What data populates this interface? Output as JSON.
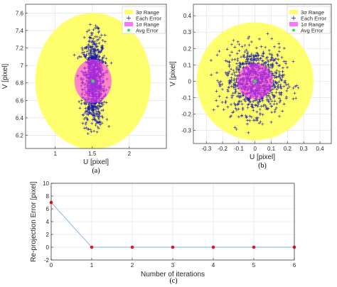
{
  "colors": {
    "sigma3_fill": "#ffff66",
    "sigma1_fill": "#ff33ff",
    "points": "#1a1aa6",
    "avg": "#33dd55",
    "line": "#9bbfe0",
    "marker": "#e8141e",
    "grid": "#dcdcdc"
  },
  "chart_data": [
    {
      "type": "scatter",
      "caption": "(a)",
      "xlabel": "U [pixel]",
      "ylabel": "V [pixel]",
      "xlim": [
        0.6,
        2.5
      ],
      "ylim": [
        6.05,
        7.7
      ],
      "xticks": [
        1,
        1.5,
        2
      ],
      "yticks": [
        6.2,
        6.4,
        6.6,
        6.8,
        7,
        7.2,
        7.4,
        7.6
      ],
      "xtick_labels": [
        "1",
        "1.5",
        "2"
      ],
      "ytick_labels": [
        "6.2",
        "6.4",
        "6.6",
        "6.8",
        "7",
        "7.2",
        "7.4",
        "7.6"
      ],
      "grid": true,
      "legend_position": "top-right",
      "legend": [
        "3σ Range",
        "Each Error",
        "1σ Range",
        "Avg Error"
      ],
      "avg_error": [
        1.51,
        6.82
      ],
      "sigma3_radius": 0.78,
      "sigma1_radius": 0.25,
      "cloud": {
        "shape": "ellipse",
        "center": [
          1.52,
          6.82
        ],
        "spread": [
          0.075,
          0.26
        ],
        "count": 900
      }
    },
    {
      "type": "scatter",
      "caption": "(b)",
      "xlabel": "U [pixel]",
      "ylabel": "V [pixel]",
      "xlim": [
        -0.38,
        0.47
      ],
      "ylim": [
        -0.38,
        0.47
      ],
      "xticks": [
        -0.3,
        -0.2,
        -0.1,
        0,
        0.1,
        0.2,
        0.3,
        0.4
      ],
      "yticks": [
        -0.3,
        -0.2,
        -0.1,
        0,
        0.1,
        0.2,
        0.3,
        0.4
      ],
      "xtick_labels": [
        "-0.3",
        "-0.2",
        "-0.1",
        "0",
        "0.1",
        "0.2",
        "0.3",
        "0.4"
      ],
      "ytick_labels": [
        "-0.3",
        "-0.2",
        "-0.1",
        "0",
        "0.1",
        "0.2",
        "0.3",
        "0.4"
      ],
      "grid": true,
      "legend_position": "top-right",
      "legend": [
        "3σ Range",
        "Each Error",
        "1σ Range",
        "Avg Error"
      ],
      "avg_error": [
        0,
        0
      ],
      "sigma3_radius": 0.36,
      "sigma1_radius": 0.11,
      "cloud": {
        "shape": "disc",
        "center": [
          0,
          0
        ],
        "spread": [
          0.09,
          0.1
        ],
        "count": 900
      }
    },
    {
      "type": "line",
      "caption": "(c)",
      "xlabel": "Number of iterations",
      "ylabel": "Re-projection Error [pixel]",
      "x": [
        0,
        1,
        2,
        3,
        4,
        5,
        6
      ],
      "values": [
        7,
        0,
        0,
        0,
        0,
        0,
        0
      ],
      "xlim": [
        0,
        6
      ],
      "ylim": [
        -2,
        10
      ],
      "xticks": [
        0,
        1,
        2,
        3,
        4,
        5,
        6
      ],
      "yticks": [
        -2,
        0,
        2,
        4,
        6,
        8,
        10
      ],
      "xtick_labels": [
        "0",
        "1",
        "2",
        "3",
        "4",
        "5",
        "6"
      ],
      "ytick_labels": [
        "-2",
        "0",
        "2",
        "4",
        "6",
        "8",
        "10"
      ],
      "grid": true
    }
  ]
}
